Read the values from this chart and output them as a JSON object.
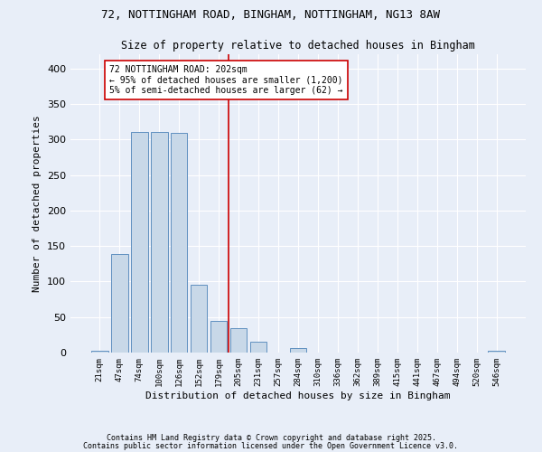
{
  "title1": "72, NOTTINGHAM ROAD, BINGHAM, NOTTINGHAM, NG13 8AW",
  "title2": "Size of property relative to detached houses in Bingham",
  "xlabel": "Distribution of detached houses by size in Bingham",
  "ylabel": "Number of detached properties",
  "categories": [
    "21sqm",
    "47sqm",
    "74sqm",
    "100sqm",
    "126sqm",
    "152sqm",
    "179sqm",
    "205sqm",
    "231sqm",
    "257sqm",
    "284sqm",
    "310sqm",
    "336sqm",
    "362sqm",
    "389sqm",
    "415sqm",
    "441sqm",
    "467sqm",
    "494sqm",
    "520sqm",
    "546sqm"
  ],
  "values": [
    3,
    139,
    311,
    311,
    309,
    95,
    45,
    34,
    15,
    0,
    6,
    0,
    0,
    0,
    0,
    0,
    0,
    0,
    0,
    0,
    3
  ],
  "bar_color": "#c8d8e8",
  "bar_edge_color": "#6090c0",
  "vline_x": 7,
  "vline_color": "#cc0000",
  "annotation_text": "72 NOTTINGHAM ROAD: 202sqm\n← 95% of detached houses are smaller (1,200)\n5% of semi-detached houses are larger (62) →",
  "annotation_box_color": "#ffffff",
  "annotation_box_edge": "#cc0000",
  "background_color": "#e8eef8",
  "grid_color": "#ffffff",
  "footer1": "Contains HM Land Registry data © Crown copyright and database right 2025.",
  "footer2": "Contains public sector information licensed under the Open Government Licence v3.0.",
  "ylim": [
    0,
    420
  ]
}
